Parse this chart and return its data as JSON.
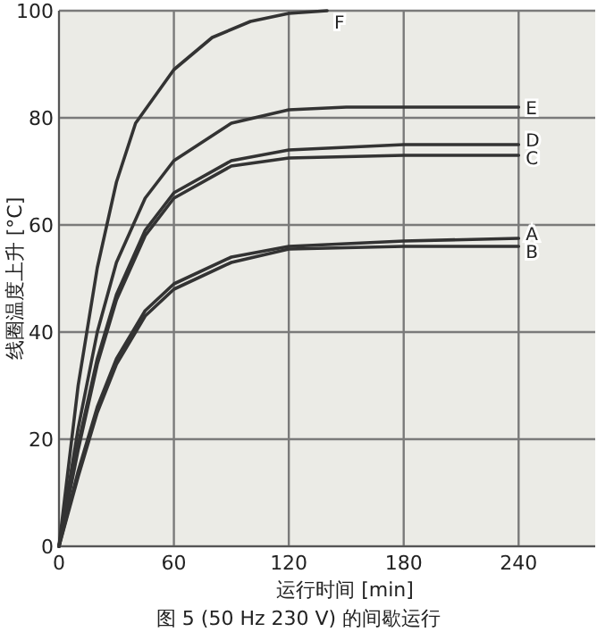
{
  "chart_data": {
    "type": "line",
    "xlabel": "运行时间 [min]",
    "ylabel": "线圈温度上升 [°C]",
    "annotations": [
      "图 5 (50 Hz 230 V) 的间歇运行"
    ],
    "xlim": [
      0,
      280
    ],
    "ylim": [
      0,
      100
    ],
    "xticks": [
      0,
      60,
      120,
      180,
      240
    ],
    "yticks": [
      0,
      20,
      40,
      60,
      80,
      100
    ],
    "grid": true,
    "legend": false,
    "marker": "none",
    "line_style": "solid",
    "series": [
      {
        "name": "F",
        "color": "#333333",
        "x": [
          0,
          10,
          20,
          30,
          40,
          60,
          80,
          100,
          120,
          140
        ],
        "values": [
          0,
          30,
          52,
          68,
          79,
          89,
          95,
          98,
          99.5,
          100
        ]
      },
      {
        "name": "E",
        "color": "#333333",
        "x": [
          0,
          10,
          20,
          30,
          45,
          60,
          90,
          120,
          150,
          240
        ],
        "values": [
          0,
          22,
          40,
          53,
          65,
          72,
          79,
          81.5,
          82,
          82
        ]
      },
      {
        "name": "D",
        "color": "#333333",
        "x": [
          0,
          10,
          20,
          30,
          45,
          60,
          90,
          120,
          180,
          240
        ],
        "values": [
          0,
          19,
          35,
          47,
          59,
          66,
          72,
          74,
          75,
          75
        ]
      },
      {
        "name": "C",
        "color": "#333333",
        "x": [
          0,
          10,
          20,
          30,
          45,
          60,
          90,
          120,
          180,
          240
        ],
        "values": [
          0,
          18,
          34,
          46,
          58,
          65,
          71,
          72.5,
          73,
          73
        ]
      },
      {
        "name": "A",
        "color": "#333333",
        "x": [
          0,
          10,
          20,
          30,
          45,
          60,
          90,
          120,
          180,
          240
        ],
        "values": [
          0,
          14,
          26,
          35,
          44,
          49,
          54,
          56,
          57,
          57.5
        ]
      },
      {
        "name": "B",
        "color": "#333333",
        "x": [
          0,
          10,
          20,
          30,
          45,
          60,
          90,
          120,
          180,
          240
        ],
        "values": [
          0,
          13,
          25,
          34,
          43,
          48,
          53,
          55.5,
          56,
          56
        ]
      }
    ]
  }
}
